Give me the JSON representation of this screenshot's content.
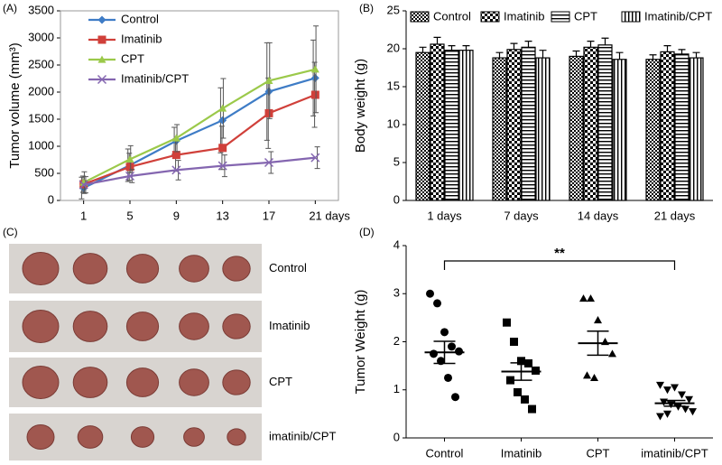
{
  "chart_data": [
    {
      "type": "line",
      "panel": "(A)",
      "ylabel": "Tumor volume (mm³)",
      "x": [
        1,
        5,
        9,
        13,
        17,
        21
      ],
      "xlim": [
        -1,
        23
      ],
      "xticks": [
        1,
        5,
        9,
        13,
        17,
        {
          "value": 21,
          "label": "21 days"
        }
      ],
      "ylim": [
        0,
        3500
      ],
      "yticks": [
        0,
        500,
        1000,
        1500,
        2000,
        2500,
        3000,
        3500
      ],
      "series": [
        {
          "name": "Control",
          "color": "#3e7cc6",
          "marker": "diamond",
          "values": [
            230,
            650,
            1100,
            1480,
            2010,
            2260
          ],
          "errors": [
            200,
            300,
            250,
            600,
            900,
            700
          ]
        },
        {
          "name": "Imatinib",
          "color": "#d0403a",
          "marker": "square",
          "values": [
            300,
            620,
            840,
            970,
            1610,
            1950
          ],
          "errors": [
            150,
            250,
            300,
            400,
            650,
            600
          ]
        },
        {
          "name": "CPT",
          "color": "#9bc94a",
          "marker": "triangle",
          "values": [
            330,
            760,
            1150,
            1700,
            2210,
            2420
          ],
          "errors": [
            200,
            250,
            250,
            550,
            700,
            800
          ]
        },
        {
          "name": "Imatinib/CPT",
          "color": "#8466b0",
          "marker": "x",
          "values": [
            290,
            450,
            560,
            640,
            700,
            790
          ],
          "errors": [
            150,
            120,
            180,
            200,
            200,
            200
          ]
        }
      ]
    },
    {
      "type": "bar",
      "panel": "(B)",
      "ylabel": "Body weight (g)",
      "categories": [
        "1 days",
        "7 days",
        "14  days",
        "21   days"
      ],
      "ylim": [
        0,
        25
      ],
      "yticks": [
        0,
        5,
        10,
        15,
        20,
        25
      ],
      "series": [
        {
          "name": "Control",
          "color": "#000000",
          "hatch": "checker",
          "values": [
            19.5,
            18.8,
            19.0,
            18.6
          ],
          "errors": [
            0.7,
            0.7,
            0.7,
            0.6
          ]
        },
        {
          "name": "Imatinib",
          "color": "#000000",
          "hatch": "grid",
          "values": [
            20.6,
            19.9,
            20.2,
            19.6
          ],
          "errors": [
            0.9,
            0.8,
            0.8,
            0.8
          ]
        },
        {
          "name": "CPT",
          "color": "#000000",
          "hatch": "horizontal",
          "values": [
            19.8,
            20.2,
            20.5,
            19.3
          ],
          "errors": [
            0.6,
            0.8,
            0.9,
            0.6
          ]
        },
        {
          "name": "Imatinib/CPT",
          "color": "#000000",
          "hatch": "vertical",
          "values": [
            19.8,
            18.8,
            18.6,
            18.8
          ],
          "errors": [
            0.6,
            1.0,
            0.9,
            0.7
          ]
        }
      ]
    },
    {
      "type": "dot",
      "panel": "(D)",
      "ylabel": "Tumor Weight (g)",
      "annotation": "**",
      "categories": [
        "Control",
        "Imatinib",
        "CPT",
        "imatinib/CPT"
      ],
      "ylim": [
        0,
        4
      ],
      "yticks": [
        0,
        1,
        2,
        3,
        4
      ],
      "color": "#000000",
      "markers": [
        "circle",
        "square",
        "triangle",
        "triangle-down"
      ],
      "points": [
        [
          3.0,
          2.8,
          2.2,
          1.9,
          1.8,
          1.75,
          1.6,
          1.25,
          0.85
        ],
        [
          2.4,
          2.0,
          1.6,
          1.55,
          1.4,
          1.2,
          0.95,
          0.8,
          0.6
        ],
        [
          2.9,
          2.9,
          2.45,
          2.0,
          1.75,
          1.3,
          1.25
        ],
        [
          1.1,
          1.0,
          1.05,
          0.9,
          0.8,
          0.75,
          0.7,
          0.65,
          0.6,
          0.55,
          0.45,
          0.5
        ]
      ],
      "means": [
        1.78,
        1.38,
        1.97,
        0.72
      ],
      "sems": [
        0.23,
        0.18,
        0.25,
        0.06
      ]
    }
  ],
  "photo": {
    "panel": "(C)",
    "rows": [
      "Control",
      "Imatinib",
      "CPT",
      "imatinib/CPT"
    ]
  }
}
